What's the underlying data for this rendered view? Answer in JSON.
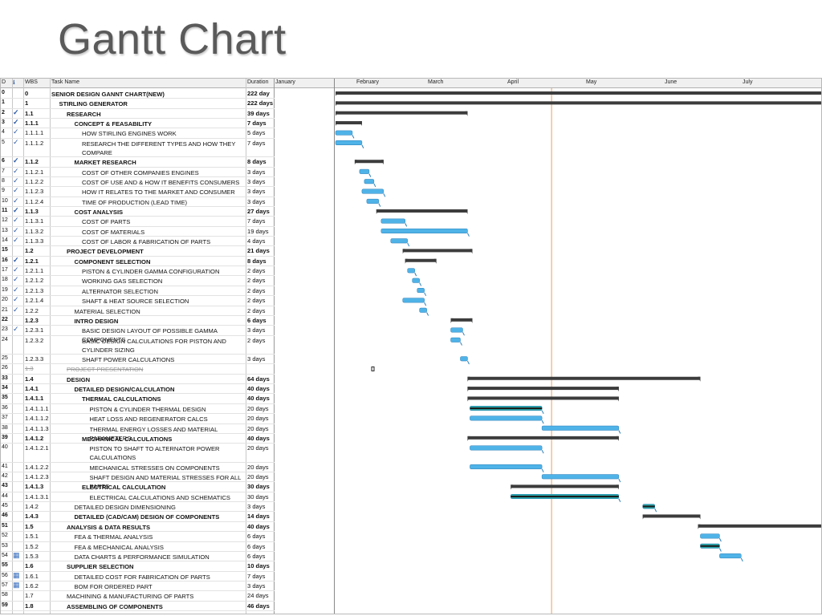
{
  "slide": {
    "title": "Gantt Chart"
  },
  "table": {
    "headers": {
      "id": "D",
      "info": "ℹ",
      "wbs": "WBS",
      "name": "Task Name",
      "duration": "Duration"
    },
    "months": [
      "January",
      "February",
      "March",
      "April",
      "May",
      "June",
      "July"
    ]
  },
  "chart_data": {
    "type": "gantt",
    "title": "",
    "x_unit": "day of year (1 = Jan 1)",
    "xlim": [
      1,
      213
    ],
    "status_date": 91,
    "tasks": [
      {
        "id": "0",
        "wbs": "0",
        "name": "SENIOR DESIGN GANNT CHART(NEW)",
        "duration": "222 day",
        "start": 1,
        "end": 213,
        "kind": "summary",
        "check": false,
        "bold": true,
        "level": 0
      },
      {
        "id": "1",
        "wbs": "1",
        "name": "STIRLING GENERATOR",
        "duration": "222 days",
        "start": 1,
        "end": 213,
        "kind": "summary",
        "check": false,
        "bold": true,
        "level": 1
      },
      {
        "id": "2",
        "wbs": "1.1",
        "name": "RESEARCH",
        "duration": "39 days",
        "start": 1,
        "end": 56,
        "kind": "summary",
        "check": true,
        "bold": true,
        "level": 2
      },
      {
        "id": "3",
        "wbs": "1.1.1",
        "name": "CONCEPT & FEASABILITY",
        "duration": "7 days",
        "start": 1,
        "end": 12,
        "kind": "summary",
        "check": true,
        "bold": true,
        "level": 3
      },
      {
        "id": "4",
        "wbs": "1.1.1.1",
        "name": "HOW STIRLING ENGINES WORK",
        "duration": "5 days",
        "start": 1,
        "end": 8,
        "kind": "task",
        "check": true,
        "bold": false,
        "level": 4
      },
      {
        "id": "5",
        "wbs": "1.1.1.2",
        "name": "RESEARCH THE DIFFERENT TYPES AND HOW THEY COMPARE",
        "duration": "7 days",
        "start": 1,
        "end": 12,
        "kind": "task",
        "check": true,
        "bold": false,
        "level": 4
      },
      {
        "id": "6",
        "wbs": "1.1.2",
        "name": "MARKET RESEARCH",
        "duration": "8 days",
        "start": 9,
        "end": 21,
        "kind": "summary",
        "check": true,
        "bold": true,
        "level": 3
      },
      {
        "id": "7",
        "wbs": "1.1.2.1",
        "name": "COST OF OTHER COMPANIES ENGINES",
        "duration": "3 days",
        "start": 11,
        "end": 15,
        "kind": "task",
        "check": true,
        "bold": false,
        "level": 4
      },
      {
        "id": "8",
        "wbs": "1.1.2.2",
        "name": "COST OF USE AND & HOW IT BENEFITS CONSUMERS",
        "duration": "3 days",
        "start": 13,
        "end": 17,
        "kind": "task",
        "check": true,
        "bold": false,
        "level": 4
      },
      {
        "id": "9",
        "wbs": "1.1.2.3",
        "name": "HOW IT RELATES TO THE MARKET AND CONSUMER",
        "duration": "3 days",
        "start": 12,
        "end": 21,
        "kind": "task",
        "check": true,
        "bold": false,
        "level": 4
      },
      {
        "id": "10",
        "wbs": "1.1.2.4",
        "name": "TIME OF PRODUCTION (LEAD TIME)",
        "duration": "3 days",
        "start": 14,
        "end": 19,
        "kind": "task",
        "check": true,
        "bold": false,
        "level": 4
      },
      {
        "id": "11",
        "wbs": "1.1.3",
        "name": "COST ANALYSIS",
        "duration": "27 days",
        "start": 18,
        "end": 56,
        "kind": "summary",
        "check": true,
        "bold": true,
        "level": 3
      },
      {
        "id": "12",
        "wbs": "1.1.3.1",
        "name": "COST OF PARTS",
        "duration": "7 days",
        "start": 20,
        "end": 30,
        "kind": "task",
        "check": true,
        "bold": false,
        "level": 4
      },
      {
        "id": "13",
        "wbs": "1.1.3.2",
        "name": "COST OF MATERIALS",
        "duration": "19 days",
        "start": 20,
        "end": 56,
        "kind": "task",
        "check": true,
        "bold": false,
        "level": 4
      },
      {
        "id": "14",
        "wbs": "1.1.3.3",
        "name": "COST OF LABOR & FABRICATION OF PARTS",
        "duration": "4 days",
        "start": 24,
        "end": 31,
        "kind": "task",
        "check": true,
        "bold": false,
        "level": 4
      },
      {
        "id": "15",
        "wbs": "1.2",
        "name": "PROJECT DEVELOPMENT",
        "duration": "21 days",
        "start": 29,
        "end": 58,
        "kind": "summary",
        "check": false,
        "bold": true,
        "level": 2
      },
      {
        "id": "16",
        "wbs": "1.2.1",
        "name": "COMPONENT SELECTION",
        "duration": "8 days",
        "start": 30,
        "end": 43,
        "kind": "summary",
        "check": true,
        "bold": true,
        "level": 3
      },
      {
        "id": "17",
        "wbs": "1.2.1.1",
        "name": "PISTON & CYLINDER GAMMA CONFIGURATION",
        "duration": "2 days",
        "start": 31,
        "end": 34,
        "kind": "task",
        "check": true,
        "bold": false,
        "level": 4
      },
      {
        "id": "18",
        "wbs": "1.2.1.2",
        "name": "WORKING GAS SELECTION",
        "duration": "2 days",
        "start": 33,
        "end": 36,
        "kind": "task",
        "check": true,
        "bold": false,
        "level": 4
      },
      {
        "id": "19",
        "wbs": "1.2.1.3",
        "name": "ALTERNATOR SELECTION",
        "duration": "2 days",
        "start": 35,
        "end": 38,
        "kind": "task",
        "check": true,
        "bold": false,
        "level": 4
      },
      {
        "id": "20",
        "wbs": "1.2.1.4",
        "name": "SHAFT & HEAT SOURCE SELECTION",
        "duration": "2 days",
        "start": 29,
        "end": 38,
        "kind": "task",
        "check": true,
        "bold": false,
        "level": 4
      },
      {
        "id": "21",
        "wbs": "1.2.2",
        "name": "MATERIAL SELECTION",
        "duration": "2 days",
        "start": 36,
        "end": 39,
        "kind": "task",
        "check": true,
        "bold": false,
        "level": 3
      },
      {
        "id": "22",
        "wbs": "1.2.3",
        "name": "INTRO DESIGN",
        "duration": "6 days",
        "start": 49,
        "end": 58,
        "kind": "summary",
        "check": false,
        "bold": true,
        "level": 3
      },
      {
        "id": "23",
        "wbs": "1.2.3.1",
        "name": "BASIC DESIGN LAYOUT OF POSSIBLE GAMMA COMPONENTS",
        "duration": "3 days",
        "start": 49,
        "end": 54,
        "kind": "task",
        "check": true,
        "bold": false,
        "level": 4
      },
      {
        "id": "24",
        "wbs": "1.2.3.2",
        "name": "BASIC DESIGN CALCULATIONS FOR PISTON AND CYLINDER SIZING",
        "duration": "2 days",
        "start": 49,
        "end": 53,
        "kind": "task",
        "check": false,
        "bold": false,
        "level": 4
      },
      {
        "id": "25",
        "wbs": "1.2.3.3",
        "name": "SHAFT POWER CALCULATIONS",
        "duration": "3 days",
        "start": 53,
        "end": 56,
        "kind": "task",
        "check": false,
        "bold": false,
        "level": 4
      },
      {
        "id": "26",
        "wbs": "1.3",
        "name": "PROJECT PRESENTATION",
        "duration": "",
        "start": null,
        "end": null,
        "kind": "inactive",
        "check": false,
        "bold": false,
        "level": 2
      },
      {
        "id": "33",
        "wbs": "1.4",
        "name": "DESIGN",
        "duration": "64 days",
        "start": 56,
        "end": 153,
        "kind": "summary",
        "check": false,
        "bold": true,
        "level": 2
      },
      {
        "id": "34",
        "wbs": "1.4.1",
        "name": "DETAILED DESIGN/CALCULATION",
        "duration": "40 days",
        "start": 56,
        "end": 119,
        "kind": "summary",
        "check": false,
        "bold": true,
        "level": 3
      },
      {
        "id": "35",
        "wbs": "1.4.1.1",
        "name": "THERMAL CALCULATIONS",
        "duration": "40 days",
        "start": 56,
        "end": 119,
        "kind": "summary",
        "check": false,
        "bold": true,
        "level": 4
      },
      {
        "id": "36",
        "wbs": "1.4.1.1.1",
        "name": "PISTON & CYLINDER THERMAL DESIGN",
        "duration": "20 days",
        "start": 57,
        "end": 87,
        "kind": "progress",
        "check": false,
        "bold": false,
        "level": 5
      },
      {
        "id": "37",
        "wbs": "1.4.1.1.2",
        "name": "HEAT LOSS AND REGENERATOR CALCS",
        "duration": "20 days",
        "start": 57,
        "end": 87,
        "kind": "task",
        "check": false,
        "bold": false,
        "level": 5
      },
      {
        "id": "38",
        "wbs": "1.4.1.1.3",
        "name": "THERMAL ENERGY LOSSES AND MATERIAL PARAMETERS",
        "duration": "20 days",
        "start": 87,
        "end": 119,
        "kind": "task",
        "check": false,
        "bold": false,
        "level": 5
      },
      {
        "id": "39",
        "wbs": "1.4.1.2",
        "name": "MECHANICAL CALCULATIONS",
        "duration": "40 days",
        "start": 56,
        "end": 119,
        "kind": "summary",
        "check": false,
        "bold": true,
        "level": 4
      },
      {
        "id": "40",
        "wbs": "1.4.1.2.1",
        "name": "PISTON TO SHAFT TO ALTERNATOR POWER CALCULATIONS",
        "duration": "20 days",
        "start": 57,
        "end": 87,
        "kind": "task",
        "check": false,
        "bold": false,
        "level": 5
      },
      {
        "id": "41",
        "wbs": "1.4.1.2.2",
        "name": "MECHANICAL STRESSES ON COMPONENTS",
        "duration": "20 days",
        "start": 57,
        "end": 87,
        "kind": "task",
        "check": false,
        "bold": false,
        "level": 5
      },
      {
        "id": "42",
        "wbs": "1.4.1.2.3",
        "name": "SHAFT DESIGN AND MATERIAL STRESSES FOR ALL PARTS",
        "duration": "20 days",
        "start": 87,
        "end": 119,
        "kind": "task",
        "check": false,
        "bold": false,
        "level": 5
      },
      {
        "id": "43",
        "wbs": "1.4.1.3",
        "name": "ELECTRICAL CALCULATION",
        "duration": "30 days",
        "start": 74,
        "end": 119,
        "kind": "summary",
        "check": false,
        "bold": true,
        "level": 4
      },
      {
        "id": "44",
        "wbs": "1.4.1.3.1",
        "name": "ELECTRICAL CALCULATIONS AND SCHEMATICS",
        "duration": "30 days",
        "start": 74,
        "end": 119,
        "kind": "progress",
        "check": false,
        "bold": false,
        "level": 5
      },
      {
        "id": "45",
        "wbs": "1.4.2",
        "name": "DETAILED DESIGN DIMENSIONING",
        "duration": "3 days",
        "start": 129,
        "end": 134,
        "kind": "progress",
        "check": false,
        "bold": false,
        "level": 3
      },
      {
        "id": "46",
        "wbs": "1.4.3",
        "name": "DETAILED (CAD/CAM) DESIGN OF COMPONENTS",
        "duration": "14 days",
        "start": 129,
        "end": 153,
        "kind": "summary",
        "check": false,
        "bold": true,
        "level": 3
      },
      {
        "id": "51",
        "wbs": "1.5",
        "name": "ANALYSIS & DATA RESULTS",
        "duration": "40 days",
        "start": 152,
        "end": 213,
        "kind": "summary",
        "check": false,
        "bold": true,
        "level": 2
      },
      {
        "id": "52",
        "wbs": "1.5.1",
        "name": "FEA & THERMAL  ANALYSIS",
        "duration": "6 days",
        "start": 153,
        "end": 161,
        "kind": "task",
        "check": false,
        "bold": false,
        "level": 3
      },
      {
        "id": "53",
        "wbs": "1.5.2",
        "name": "FEA & MECHANICAL ANALYSIS",
        "duration": "6 days",
        "start": 153,
        "end": 161,
        "kind": "progress",
        "check": false,
        "bold": false,
        "level": 3
      },
      {
        "id": "54",
        "wbs": "1.5.3",
        "name": "DATA CHARTS & PERFORMANCE SIMULATION",
        "duration": "6 days",
        "start": 161,
        "end": 170,
        "kind": "task",
        "check": false,
        "bold": false,
        "level": 3
      },
      {
        "id": "55",
        "wbs": "1.6",
        "name": "SUPPLIER SELECTION",
        "duration": "10 days",
        "start": null,
        "end": null,
        "kind": "summary-offscreen",
        "check": false,
        "bold": true,
        "level": 2
      },
      {
        "id": "56",
        "wbs": "1.6.1",
        "name": "DETAILED COST FOR FABRICATION OF PARTS",
        "duration": "7 days",
        "start": null,
        "end": null,
        "kind": "offscreen",
        "check": false,
        "bold": false,
        "level": 3
      },
      {
        "id": "57",
        "wbs": "1.6.2",
        "name": "BOM FOR ORDERED PART",
        "duration": "3 days",
        "start": null,
        "end": null,
        "kind": "offscreen",
        "check": false,
        "bold": false,
        "level": 3
      },
      {
        "id": "58",
        "wbs": "1.7",
        "name": "MACHINING & MANUFACTURING OF PARTS",
        "duration": "24 days",
        "start": null,
        "end": null,
        "kind": "offscreen",
        "check": false,
        "bold": false,
        "level": 2
      },
      {
        "id": "59",
        "wbs": "1.8",
        "name": "ASSEMBLING OF COMPONENTS",
        "duration": "46 days",
        "start": null,
        "end": null,
        "kind": "summary-offscreen",
        "check": false,
        "bold": true,
        "level": 2
      }
    ],
    "info_icons": [
      "54",
      "56",
      "57"
    ]
  }
}
